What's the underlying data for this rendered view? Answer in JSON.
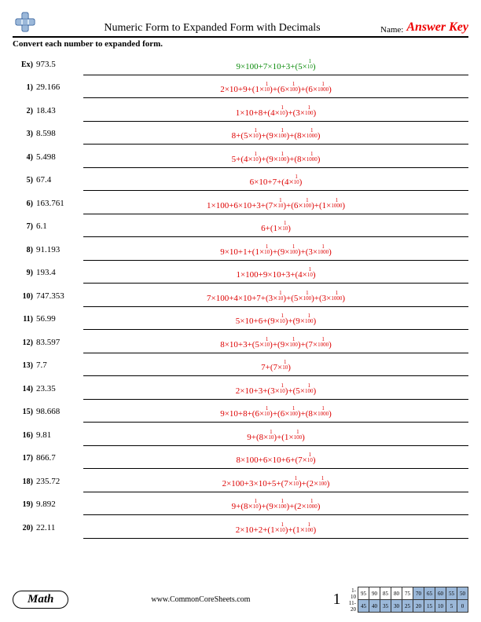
{
  "header": {
    "title": "Numeric Form to Expanded Form with Decimals",
    "name_label": "Name:",
    "answer_key": "Answer Key"
  },
  "instruction": "Convert each number to expanded form.",
  "problems": [
    {
      "num": "Ex)",
      "value": "973.5",
      "answer": "9×100+7×10+3+(5×¹/₁₀)",
      "cls": "ans-green"
    },
    {
      "num": "1)",
      "value": "29.166",
      "answer": "2×10+9+(1×¹/₁₀)+(6×¹/₁₀₀)+(6×¹/₁₀₀₀)",
      "cls": "ans-red"
    },
    {
      "num": "2)",
      "value": "18.43",
      "answer": "1×10+8+(4×¹/₁₀)+(3×¹/₁₀₀)",
      "cls": "ans-red"
    },
    {
      "num": "3)",
      "value": "8.598",
      "answer": "8+(5×¹/₁₀)+(9×¹/₁₀₀)+(8×¹/₁₀₀₀)",
      "cls": "ans-red"
    },
    {
      "num": "4)",
      "value": "5.498",
      "answer": "5+(4×¹/₁₀)+(9×¹/₁₀₀)+(8×¹/₁₀₀₀)",
      "cls": "ans-red"
    },
    {
      "num": "5)",
      "value": "67.4",
      "answer": "6×10+7+(4×¹/₁₀)",
      "cls": "ans-red"
    },
    {
      "num": "6)",
      "value": "163.761",
      "answer": "1×100+6×10+3+(7×¹/₁₀)+(6×¹/₁₀₀)+(1×¹/₁₀₀₀)",
      "cls": "ans-red"
    },
    {
      "num": "7)",
      "value": "6.1",
      "answer": "6+(1×¹/₁₀)",
      "cls": "ans-red"
    },
    {
      "num": "8)",
      "value": "91.193",
      "answer": "9×10+1+(1×¹/₁₀)+(9×¹/₁₀₀)+(3×¹/₁₀₀₀)",
      "cls": "ans-red"
    },
    {
      "num": "9)",
      "value": "193.4",
      "answer": "1×100+9×10+3+(4×¹/₁₀)",
      "cls": "ans-red"
    },
    {
      "num": "10)",
      "value": "747.353",
      "answer": "7×100+4×10+7+(3×¹/₁₀)+(5×¹/₁₀₀)+(3×¹/₁₀₀₀)",
      "cls": "ans-red"
    },
    {
      "num": "11)",
      "value": "56.99",
      "answer": "5×10+6+(9×¹/₁₀)+(9×¹/₁₀₀)",
      "cls": "ans-red"
    },
    {
      "num": "12)",
      "value": "83.597",
      "answer": "8×10+3+(5×¹/₁₀)+(9×¹/₁₀₀)+(7×¹/₁₀₀₀)",
      "cls": "ans-red"
    },
    {
      "num": "13)",
      "value": "7.7",
      "answer": "7+(7×¹/₁₀)",
      "cls": "ans-red"
    },
    {
      "num": "14)",
      "value": "23.35",
      "answer": "2×10+3+(3×¹/₁₀)+(5×¹/₁₀₀)",
      "cls": "ans-red"
    },
    {
      "num": "15)",
      "value": "98.668",
      "answer": "9×10+8+(6×¹/₁₀)+(6×¹/₁₀₀)+(8×¹/₁₀₀₀)",
      "cls": "ans-red"
    },
    {
      "num": "16)",
      "value": "9.81",
      "answer": "9+(8×¹/₁₀)+(1×¹/₁₀₀)",
      "cls": "ans-red"
    },
    {
      "num": "17)",
      "value": "866.7",
      "answer": "8×100+6×10+6+(7×¹/₁₀)",
      "cls": "ans-red"
    },
    {
      "num": "18)",
      "value": "235.72",
      "answer": "2×100+3×10+5+(7×¹/₁₀)+(2×¹/₁₀₀)",
      "cls": "ans-red"
    },
    {
      "num": "19)",
      "value": "9.892",
      "answer": "9+(8×¹/₁₀)+(9×¹/₁₀₀)+(2×¹/₁₀₀₀)",
      "cls": "ans-red"
    },
    {
      "num": "20)",
      "value": "22.11",
      "answer": "2×10+2+(1×¹/₁₀)+(1×¹/₁₀₀)",
      "cls": "ans-red"
    }
  ],
  "footer": {
    "badge": "Math",
    "url": "www.CommonCoreSheets.com",
    "page": "1",
    "score_rows": [
      {
        "label": "1-10",
        "cells": [
          "95",
          "90",
          "85",
          "80",
          "75",
          "70",
          "65",
          "60",
          "55",
          "50"
        ],
        "shade_from": 5
      },
      {
        "label": "11-20",
        "cells": [
          "45",
          "40",
          "35",
          "30",
          "25",
          "20",
          "15",
          "10",
          "5",
          "0"
        ],
        "shade_from": 0
      }
    ]
  }
}
